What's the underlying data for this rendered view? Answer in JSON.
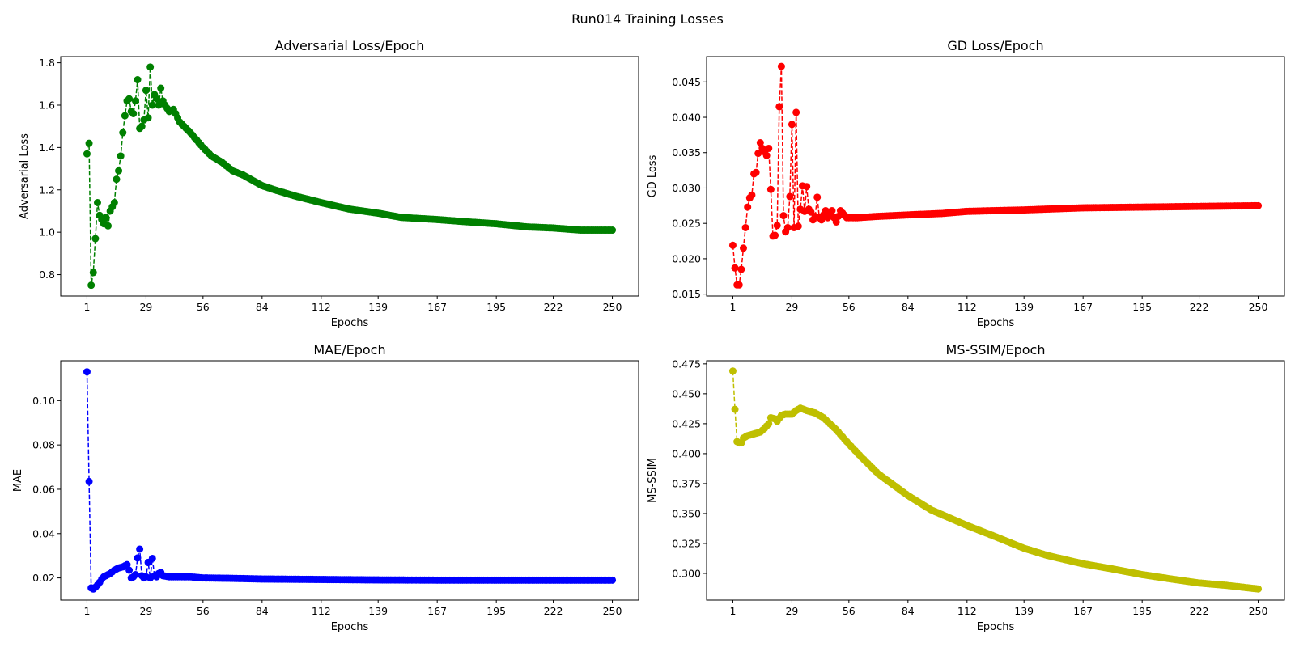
{
  "figure": {
    "title": "Run014 Training Losses"
  },
  "chart_data": [
    {
      "type": "line",
      "title": "Adversarial Loss/Epoch",
      "xlabel": "Epochs",
      "ylabel": "Adversarial Loss",
      "color": "#008000",
      "line_style": "dashed",
      "marker": "circle",
      "grid": false,
      "xlim": [
        -11.45,
        262.45
      ],
      "ylim": [
        0.699,
        1.829
      ],
      "x_ticks": [
        1,
        29,
        56,
        84,
        112,
        139,
        167,
        195,
        222,
        250
      ],
      "y_ticks": [
        0.8,
        1.0,
        1.2,
        1.4,
        1.6,
        1.8
      ],
      "y_tick_labels": [
        "0.8",
        "1.0",
        "1.2",
        "1.4",
        "1.6",
        "1.8"
      ],
      "anchors": [
        [
          1,
          1.37
        ],
        [
          2,
          1.42
        ],
        [
          3,
          0.75
        ],
        [
          4,
          0.81
        ],
        [
          5,
          0.97
        ],
        [
          6,
          1.14
        ],
        [
          7,
          1.08
        ],
        [
          8,
          1.06
        ],
        [
          9,
          1.04
        ],
        [
          10,
          1.07
        ],
        [
          11,
          1.03
        ],
        [
          12,
          1.1
        ],
        [
          13,
          1.12
        ],
        [
          14,
          1.14
        ],
        [
          15,
          1.25
        ],
        [
          16,
          1.29
        ],
        [
          17,
          1.36
        ],
        [
          18,
          1.47
        ],
        [
          19,
          1.55
        ],
        [
          20,
          1.62
        ],
        [
          21,
          1.63
        ],
        [
          22,
          1.57
        ],
        [
          23,
          1.56
        ],
        [
          24,
          1.62
        ],
        [
          25,
          1.72
        ],
        [
          26,
          1.49
        ],
        [
          27,
          1.5
        ],
        [
          28,
          1.53
        ],
        [
          29,
          1.67
        ],
        [
          30,
          1.54
        ],
        [
          31,
          1.78
        ],
        [
          32,
          1.6
        ],
        [
          33,
          1.65
        ],
        [
          34,
          1.63
        ],
        [
          35,
          1.6
        ],
        [
          36,
          1.68
        ],
        [
          37,
          1.62
        ],
        [
          38,
          1.6
        ],
        [
          40,
          1.57
        ],
        [
          42,
          1.58
        ],
        [
          45,
          1.52
        ],
        [
          50,
          1.47
        ],
        [
          56,
          1.4
        ],
        [
          60,
          1.36
        ],
        [
          65,
          1.33
        ],
        [
          70,
          1.29
        ],
        [
          75,
          1.27
        ],
        [
          84,
          1.22
        ],
        [
          90,
          1.2
        ],
        [
          100,
          1.17
        ],
        [
          112,
          1.14
        ],
        [
          125,
          1.11
        ],
        [
          139,
          1.09
        ],
        [
          150,
          1.07
        ],
        [
          167,
          1.06
        ],
        [
          180,
          1.05
        ],
        [
          195,
          1.04
        ],
        [
          210,
          1.025
        ],
        [
          222,
          1.02
        ],
        [
          235,
          1.01
        ],
        [
          250,
          1.01
        ]
      ]
    },
    {
      "type": "line",
      "title": "GD Loss/Epoch",
      "xlabel": "Epochs",
      "ylabel": "GD Loss",
      "color": "#ff0000",
      "line_style": "dashed",
      "marker": "circle",
      "grid": false,
      "xlim": [
        -11.45,
        262.45
      ],
      "ylim": [
        0.01473,
        0.04858
      ],
      "x_ticks": [
        1,
        29,
        56,
        84,
        112,
        139,
        167,
        195,
        222,
        250
      ],
      "y_ticks": [
        0.015,
        0.02,
        0.025,
        0.03,
        0.035,
        0.04,
        0.045
      ],
      "y_tick_labels": [
        "0.015",
        "0.020",
        "0.025",
        "0.030",
        "0.035",
        "0.040",
        "0.045"
      ],
      "anchors": [
        [
          1,
          0.0219
        ],
        [
          2,
          0.0187
        ],
        [
          3,
          0.0163
        ],
        [
          4,
          0.0163
        ],
        [
          5,
          0.0185
        ],
        [
          6,
          0.0215
        ],
        [
          7,
          0.0244
        ],
        [
          8,
          0.0273
        ],
        [
          9,
          0.0286
        ],
        [
          10,
          0.029
        ],
        [
          11,
          0.032
        ],
        [
          12,
          0.0322
        ],
        [
          13,
          0.0349
        ],
        [
          14,
          0.0364
        ],
        [
          15,
          0.0356
        ],
        [
          16,
          0.0351
        ],
        [
          17,
          0.0346
        ],
        [
          18,
          0.0356
        ],
        [
          19,
          0.0298
        ],
        [
          20,
          0.0232
        ],
        [
          21,
          0.0233
        ],
        [
          22,
          0.0247
        ],
        [
          23,
          0.0415
        ],
        [
          24,
          0.0472
        ],
        [
          25,
          0.0261
        ],
        [
          26,
          0.0238
        ],
        [
          27,
          0.0244
        ],
        [
          28,
          0.0288
        ],
        [
          29,
          0.039
        ],
        [
          30,
          0.0244
        ],
        [
          31,
          0.0407
        ],
        [
          32,
          0.0246
        ],
        [
          33,
          0.027
        ],
        [
          34,
          0.0303
        ],
        [
          35,
          0.0267
        ],
        [
          36,
          0.0302
        ],
        [
          37,
          0.027
        ],
        [
          38,
          0.0266
        ],
        [
          39,
          0.0255
        ],
        [
          40,
          0.026
        ],
        [
          41,
          0.0287
        ],
        [
          42,
          0.0258
        ],
        [
          43,
          0.0255
        ],
        [
          44,
          0.0262
        ],
        [
          45,
          0.0268
        ],
        [
          46,
          0.0258
        ],
        [
          47,
          0.0262
        ],
        [
          48,
          0.0268
        ],
        [
          49,
          0.0258
        ],
        [
          50,
          0.0252
        ],
        [
          52,
          0.0268
        ],
        [
          55,
          0.0258
        ],
        [
          60,
          0.0258
        ],
        [
          70,
          0.026
        ],
        [
          84,
          0.0262
        ],
        [
          100,
          0.0264
        ],
        [
          112,
          0.0267
        ],
        [
          139,
          0.0269
        ],
        [
          167,
          0.0272
        ],
        [
          195,
          0.0273
        ],
        [
          222,
          0.0274
        ],
        [
          250,
          0.0275
        ]
      ]
    },
    {
      "type": "line",
      "title": "MAE/Epoch",
      "xlabel": "Epochs",
      "ylabel": "MAE",
      "color": "#0000ff",
      "line_style": "dashed",
      "marker": "circle",
      "grid": false,
      "xlim": [
        -11.45,
        262.45
      ],
      "ylim": [
        0.01,
        0.118
      ],
      "x_ticks": [
        1,
        29,
        56,
        84,
        112,
        139,
        167,
        195,
        222,
        250
      ],
      "y_ticks": [
        0.02,
        0.04,
        0.06,
        0.08,
        0.1
      ],
      "y_tick_labels": [
        "0.02",
        "0.04",
        "0.06",
        "0.08",
        "0.10"
      ],
      "anchors": [
        [
          1,
          0.113
        ],
        [
          2,
          0.0635
        ],
        [
          3,
          0.0155
        ],
        [
          4,
          0.015
        ],
        [
          5,
          0.0158
        ],
        [
          6,
          0.0168
        ],
        [
          7,
          0.018
        ],
        [
          8,
          0.0195
        ],
        [
          9,
          0.0205
        ],
        [
          10,
          0.021
        ],
        [
          12,
          0.022
        ],
        [
          14,
          0.0235
        ],
        [
          16,
          0.0245
        ],
        [
          18,
          0.025
        ],
        [
          20,
          0.026
        ],
        [
          21,
          0.0235
        ],
        [
          22,
          0.02
        ],
        [
          23,
          0.0205
        ],
        [
          24,
          0.0215
        ],
        [
          25,
          0.029
        ],
        [
          26,
          0.033
        ],
        [
          27,
          0.021
        ],
        [
          28,
          0.02
        ],
        [
          29,
          0.0205
        ],
        [
          30,
          0.027
        ],
        [
          31,
          0.02
        ],
        [
          32,
          0.0288
        ],
        [
          33,
          0.021
        ],
        [
          34,
          0.0205
        ],
        [
          35,
          0.022
        ],
        [
          36,
          0.0225
        ],
        [
          37,
          0.021
        ],
        [
          40,
          0.0205
        ],
        [
          45,
          0.0205
        ],
        [
          50,
          0.0205
        ],
        [
          56,
          0.02
        ],
        [
          70,
          0.0198
        ],
        [
          84,
          0.0195
        ],
        [
          112,
          0.0193
        ],
        [
          139,
          0.0191
        ],
        [
          167,
          0.019
        ],
        [
          195,
          0.019
        ],
        [
          222,
          0.019
        ],
        [
          250,
          0.019
        ]
      ]
    },
    {
      "type": "line",
      "title": "MS-SSIM/Epoch",
      "xlabel": "Epochs",
      "ylabel": "MS-SSIM",
      "color": "#bfbf00",
      "line_style": "dashed",
      "marker": "circle",
      "grid": false,
      "xlim": [
        -11.45,
        262.45
      ],
      "ylim": [
        0.2777,
        0.4776
      ],
      "x_ticks": [
        1,
        29,
        56,
        84,
        112,
        139,
        167,
        195,
        222,
        250
      ],
      "y_ticks": [
        0.3,
        0.325,
        0.35,
        0.375,
        0.4,
        0.425,
        0.45,
        0.475
      ],
      "y_tick_labels": [
        "0.300",
        "0.325",
        "0.350",
        "0.375",
        "0.400",
        "0.425",
        "0.450",
        "0.475"
      ],
      "anchors": [
        [
          1,
          0.469
        ],
        [
          2,
          0.437
        ],
        [
          3,
          0.41
        ],
        [
          4,
          0.409
        ],
        [
          5,
          0.409
        ],
        [
          6,
          0.413
        ],
        [
          8,
          0.415
        ],
        [
          10,
          0.416
        ],
        [
          12,
          0.417
        ],
        [
          14,
          0.418
        ],
        [
          16,
          0.421
        ],
        [
          18,
          0.425
        ],
        [
          19,
          0.43
        ],
        [
          21,
          0.429
        ],
        [
          22,
          0.427
        ],
        [
          24,
          0.432
        ],
        [
          26,
          0.433
        ],
        [
          29,
          0.433
        ],
        [
          31,
          0.436
        ],
        [
          33,
          0.438
        ],
        [
          36,
          0.436
        ],
        [
          40,
          0.434
        ],
        [
          44,
          0.43
        ],
        [
          50,
          0.42
        ],
        [
          56,
          0.408
        ],
        [
          62,
          0.397
        ],
        [
          70,
          0.383
        ],
        [
          84,
          0.365
        ],
        [
          95,
          0.353
        ],
        [
          112,
          0.34
        ],
        [
          125,
          0.331
        ],
        [
          139,
          0.321
        ],
        [
          150,
          0.315
        ],
        [
          167,
          0.308
        ],
        [
          180,
          0.304
        ],
        [
          195,
          0.299
        ],
        [
          210,
          0.295
        ],
        [
          222,
          0.292
        ],
        [
          235,
          0.29
        ],
        [
          250,
          0.287
        ]
      ]
    }
  ]
}
